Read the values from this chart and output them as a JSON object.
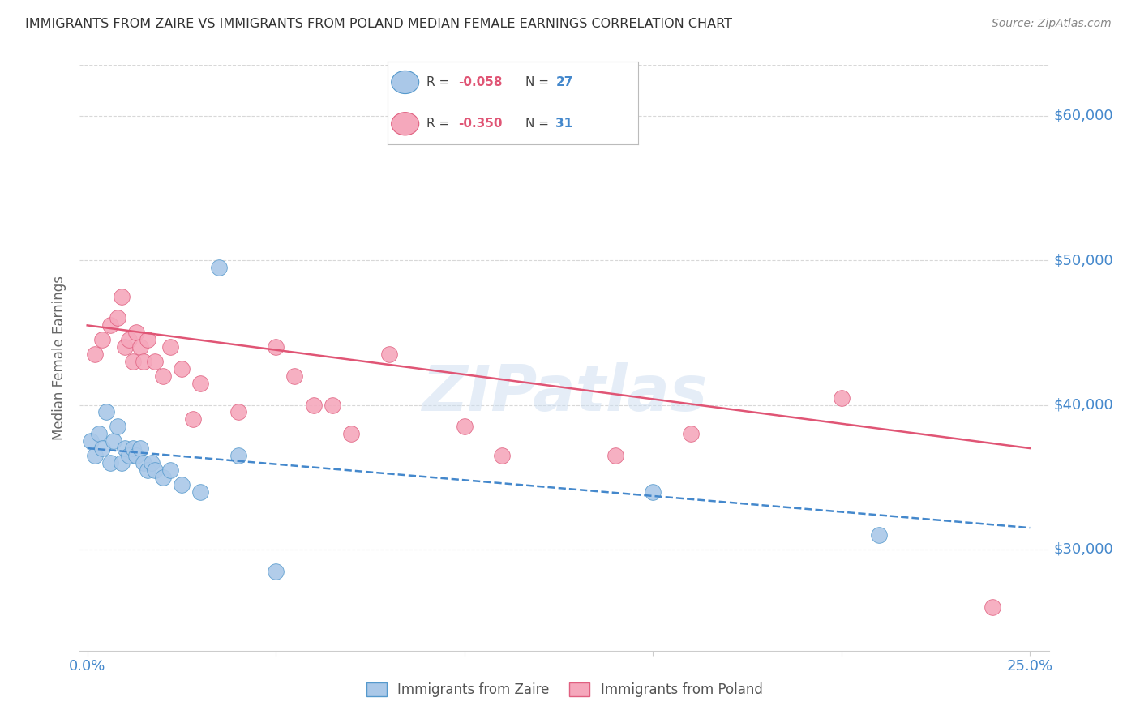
{
  "title": "IMMIGRANTS FROM ZAIRE VS IMMIGRANTS FROM POLAND MEDIAN FEMALE EARNINGS CORRELATION CHART",
  "source": "Source: ZipAtlas.com",
  "ylabel": "Median Female Earnings",
  "ytick_labels": [
    "$30,000",
    "$40,000",
    "$50,000",
    "$60,000"
  ],
  "ytick_values": [
    30000,
    40000,
    50000,
    60000
  ],
  "ylim": [
    23000,
    63500
  ],
  "xlim": [
    -0.002,
    0.255
  ],
  "zaire_color": "#aac8e8",
  "poland_color": "#f5a8bc",
  "zaire_edge_color": "#5599cc",
  "poland_edge_color": "#e06080",
  "zaire_line_color": "#4488cc",
  "poland_line_color": "#e05575",
  "watermark": "ZIPatlas",
  "zaire_scatter_x": [
    0.001,
    0.002,
    0.003,
    0.004,
    0.005,
    0.006,
    0.007,
    0.008,
    0.009,
    0.01,
    0.011,
    0.012,
    0.013,
    0.014,
    0.015,
    0.016,
    0.017,
    0.018,
    0.02,
    0.022,
    0.025,
    0.03,
    0.035,
    0.04,
    0.05,
    0.15,
    0.21
  ],
  "zaire_scatter_y": [
    37500,
    36500,
    38000,
    37000,
    39500,
    36000,
    37500,
    38500,
    36000,
    37000,
    36500,
    37000,
    36500,
    37000,
    36000,
    35500,
    36000,
    35500,
    35000,
    35500,
    34500,
    34000,
    49500,
    36500,
    28500,
    34000,
    31000
  ],
  "poland_scatter_x": [
    0.002,
    0.004,
    0.006,
    0.008,
    0.009,
    0.01,
    0.011,
    0.012,
    0.013,
    0.014,
    0.015,
    0.016,
    0.018,
    0.02,
    0.022,
    0.025,
    0.028,
    0.03,
    0.04,
    0.05,
    0.055,
    0.06,
    0.065,
    0.07,
    0.08,
    0.1,
    0.11,
    0.14,
    0.16,
    0.2,
    0.24
  ],
  "poland_scatter_y": [
    43500,
    44500,
    45500,
    46000,
    47500,
    44000,
    44500,
    43000,
    45000,
    44000,
    43000,
    44500,
    43000,
    42000,
    44000,
    42500,
    39000,
    41500,
    39500,
    44000,
    42000,
    40000,
    40000,
    38000,
    43500,
    38500,
    36500,
    36500,
    38000,
    40500,
    26000
  ],
  "zaire_trend_x": [
    0.0,
    0.25
  ],
  "zaire_trend_y": [
    37000,
    31500
  ],
  "poland_trend_x": [
    0.0,
    0.25
  ],
  "poland_trend_y": [
    45500,
    37000
  ],
  "background_color": "#ffffff",
  "grid_color": "#d8d8d8",
  "title_color": "#333333",
  "axis_color": "#4488cc",
  "ytick_color": "#4488cc",
  "legend_zaire_r": "-0.058",
  "legend_zaire_n": "27",
  "legend_poland_r": "-0.350",
  "legend_poland_n": "31",
  "bottom_label_zaire": "Immigrants from Zaire",
  "bottom_label_poland": "Immigrants from Poland"
}
